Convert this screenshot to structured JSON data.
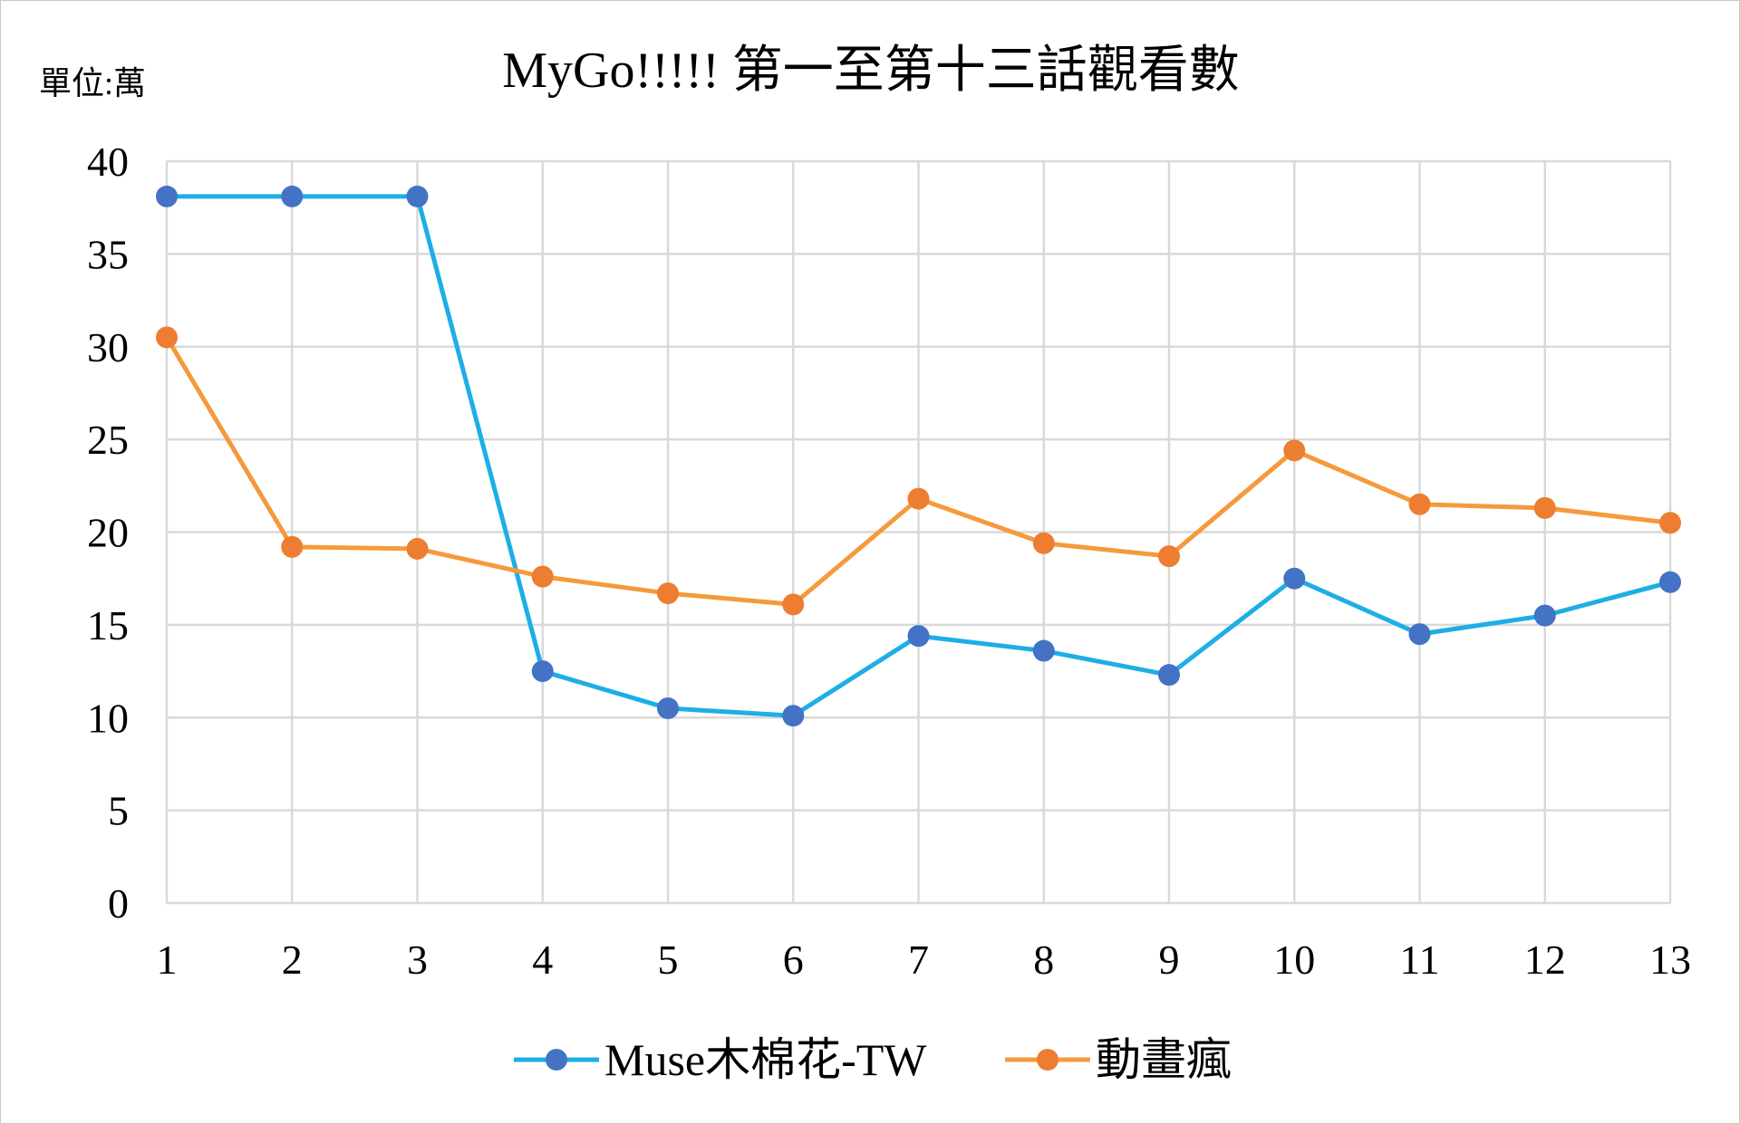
{
  "chart_data": {
    "type": "line",
    "title": "MyGo!!!!! 第一至第十三話觀看數",
    "unit_label": "單位:萬",
    "x": [
      1,
      2,
      3,
      4,
      5,
      6,
      7,
      8,
      9,
      10,
      11,
      12,
      13
    ],
    "ylim": [
      0,
      40
    ],
    "yticks": [
      0,
      5,
      10,
      15,
      20,
      25,
      30,
      35,
      40
    ],
    "grid": true,
    "legend_position": "bottom",
    "series": [
      {
        "name": "Muse木棉花-TW",
        "line_color": "#1eaee6",
        "marker_color": "#4472c4",
        "values": [
          38.1,
          38.1,
          38.1,
          12.5,
          10.5,
          10.1,
          14.4,
          13.6,
          12.3,
          17.5,
          14.5,
          15.5,
          17.3
        ]
      },
      {
        "name": "動畫瘋",
        "line_color": "#f59a3c",
        "marker_color": "#ed7d31",
        "values": [
          30.5,
          19.2,
          19.1,
          17.6,
          16.7,
          16.1,
          21.8,
          19.4,
          18.7,
          24.4,
          21.5,
          21.3,
          20.5
        ]
      }
    ]
  }
}
